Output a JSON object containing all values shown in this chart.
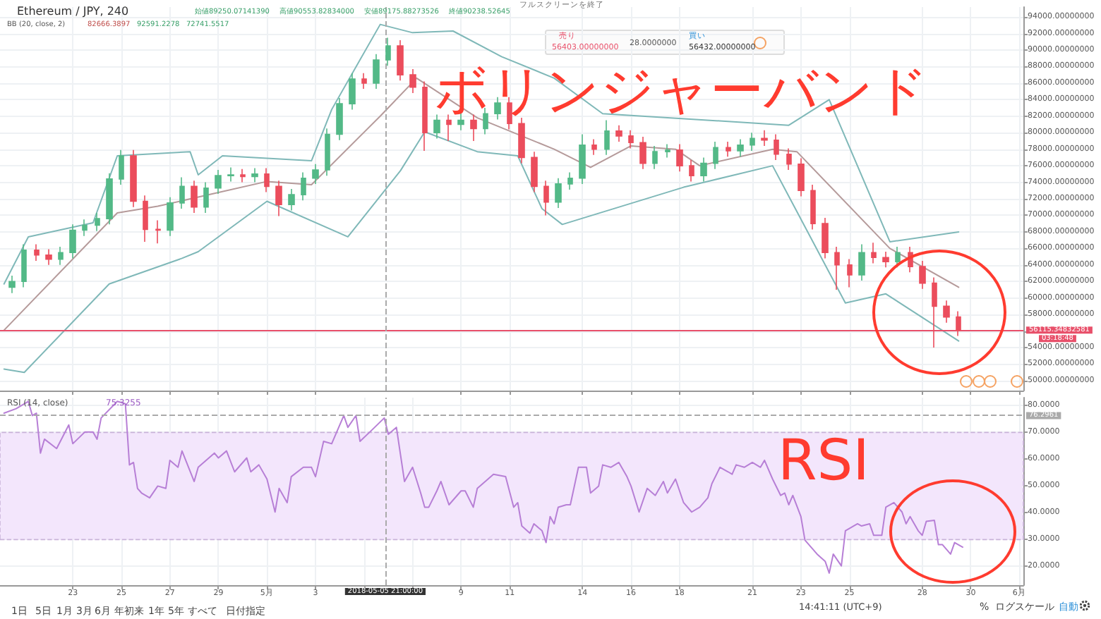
{
  "chart_data": [
    {
      "type": "candlestick",
      "title": "ボリンジャーバンド",
      "tick_labels": "y",
      "grid": true,
      "xlim": [
        "2018-04-20T00:00",
        "2018-06-01T04:00"
      ],
      "xticks": [
        {
          "value": "2018-04-23",
          "label": null
        },
        {
          "value": "2018-04-25",
          "label": null
        },
        {
          "value": "2018-04-27",
          "label": null
        },
        {
          "value": "2018-04-29",
          "label": null
        },
        {
          "value": "2018-05-01",
          "label": null
        },
        {
          "value": "2018-05-03",
          "label": null
        },
        {
          "value": "2018-05-09",
          "label": null
        },
        {
          "value": "2018-05-11",
          "label": null
        },
        {
          "value": "2018-05-14",
          "label": null
        },
        {
          "value": "2018-05-16",
          "label": null
        },
        {
          "value": "2018-05-18",
          "label": null
        },
        {
          "value": "2018-05-21",
          "label": null
        },
        {
          "value": "2018-05-23",
          "label": null
        },
        {
          "value": "2018-05-25",
          "label": null
        },
        {
          "value": "2018-05-28",
          "label": null
        },
        {
          "value": "2018-05-30",
          "label": null
        },
        {
          "value": "2018-06-01",
          "label": null
        }
      ],
      "ylim": [
        48800,
        95200
      ],
      "yticks": [
        {
          "value": 50000,
          "label": "50000.00000000"
        },
        {
          "value": 52000,
          "label": "52000.00000000"
        },
        {
          "value": 54000,
          "label": "54000.00000000"
        },
        {
          "value": 56000,
          "label": null
        },
        {
          "value": 58000,
          "label": "58000.00000000"
        },
        {
          "value": 60000,
          "label": "60000.00000000"
        },
        {
          "value": 62000,
          "label": "62000.00000000"
        },
        {
          "value": 64000,
          "label": "64000.00000000"
        },
        {
          "value": 66000,
          "label": "66000.00000000"
        },
        {
          "value": 68000,
          "label": "68000.00000000"
        },
        {
          "value": 70000,
          "label": "70000.00000000"
        },
        {
          "value": 72000,
          "label": "72000.00000000"
        },
        {
          "value": 74000,
          "label": "74000.00000000"
        },
        {
          "value": 76000,
          "label": "76000.00000000"
        },
        {
          "value": 78000,
          "label": "78000.00000000"
        },
        {
          "value": 80000,
          "label": "80000.00000000"
        },
        {
          "value": 82000,
          "label": "82000.00000000"
        },
        {
          "value": 84000,
          "label": "84000.00000000"
        },
        {
          "value": 86000,
          "label": "86000.00000000"
        },
        {
          "value": 88000,
          "label": "88000.00000000"
        },
        {
          "value": 90000,
          "label": "90000.00000000"
        },
        {
          "value": 92000,
          "label": "92000.00000000"
        },
        {
          "value": 94000,
          "label": "94000.00000000"
        }
      ],
      "series": [
        {
          "type": "line",
          "color": "#7fb8b8",
          "x": [
            "2018-04-20T04:00",
            "2018-04-21T04:00",
            "2018-04-23T20:00",
            "2018-04-24T20:00",
            "2018-04-27T20:00",
            "2018-04-28T04:00",
            "2018-04-29T04:00",
            "2018-05-02T20:00",
            "2018-05-03T16:00",
            "2018-05-05T16:00",
            "2018-05-07T00:00",
            "2018-05-08T16:00",
            "2018-05-10T16:00",
            "2018-05-12T20:00",
            "2018-05-14T20:00",
            "2018-05-22T12:00",
            "2018-05-24T04:00",
            "2018-05-26T16:00",
            "2018-05-29T12:00"
          ],
          "values": [
            61700,
            67400,
            69100,
            77200,
            77700,
            74900,
            77200,
            76600,
            82800,
            93100,
            92100,
            92300,
            89200,
            86600,
            82300,
            80900,
            84000,
            66800,
            68000
          ]
        },
        {
          "type": "line",
          "color": "#b59a9a",
          "x": [
            "2018-04-20T04:00",
            "2018-04-24T20:00",
            "2018-04-26T12:00",
            "2018-05-01T00:00",
            "2018-05-02T20:00",
            "2018-05-05T16:00",
            "2018-05-07T04:00",
            "2018-05-09T16:00",
            "2018-05-12T20:00",
            "2018-05-14T08:00",
            "2018-05-16T00:00",
            "2018-05-17T20:00",
            "2018-05-18T20:00",
            "2018-05-21T20:00",
            "2018-05-22T20:00",
            "2018-05-26T16:00",
            "2018-05-29T12:00"
          ],
          "values": [
            56100,
            70300,
            71100,
            74100,
            73700,
            82000,
            86600,
            81800,
            78000,
            75800,
            78400,
            78000,
            76000,
            78000,
            77700,
            66000,
            61300
          ]
        },
        {
          "type": "line",
          "color": "#7fb8b8",
          "x": [
            "2018-04-20T04:00",
            "2018-04-21T00:00",
            "2018-04-24T12:00",
            "2018-04-27T12:00",
            "2018-04-28T04:00",
            "2018-05-01T00:00",
            "2018-05-04T08:00",
            "2018-05-06T12:00",
            "2018-05-07T12:00",
            "2018-05-09T16:00",
            "2018-05-11T08:00",
            "2018-05-12T08:00",
            "2018-05-13T04:00",
            "2018-05-18T04:00",
            "2018-05-21T20:00",
            "2018-05-24T20:00",
            "2018-05-26T12:00",
            "2018-05-29T12:00"
          ],
          "values": [
            51400,
            51000,
            61700,
            64800,
            65600,
            71700,
            67400,
            75400,
            80100,
            77700,
            77200,
            70800,
            68900,
            73400,
            76000,
            59400,
            60500,
            54800
          ]
        },
        {
          "type": "candlestick",
          "colors": [
            "#53b987",
            "#53b987",
            "#eb4d5c",
            "#eb4d5c",
            "#53b987",
            "#53b987",
            "#53b987",
            "#53b987",
            "#53b987",
            "#53b987",
            "#eb4d5c",
            "#eb4d5c",
            "#eb4d5c",
            "#53b987",
            "#53b987",
            "#eb4d5c",
            "#53b987",
            "#53b987",
            "#53b987",
            "#eb4d5c",
            "#53b987",
            "#eb4d5c",
            "#eb4d5c",
            "#53b987",
            "#53b987",
            "#53b987",
            "#53b987",
            "#53b987",
            "#53b987",
            "#eb4d5c",
            "#53b987",
            "#53b987",
            "#eb4d5c",
            "#eb4d5c",
            "#eb4d5c",
            "#53b987",
            "#eb4d5c",
            "#53b987",
            "#eb4d5c",
            "#53b987",
            "#53b987",
            "#eb4d5c",
            "#eb4d5c",
            "#eb4d5c",
            "#eb4d5c",
            "#53b987",
            "#53b987",
            "#53b987",
            "#eb4d5c",
            "#53b987",
            "#eb4d5c",
            "#eb4d5c",
            "#eb4d5c",
            "#53b987",
            "#53b987",
            "#eb4d5c",
            "#eb4d5c",
            "#53b987",
            "#53b987",
            "#eb4d5c",
            "#53b987",
            "#53b987",
            "#eb4d5c",
            "#eb4d5c",
            "#eb4d5c",
            "#eb4d5c",
            "#eb4d5c",
            "#eb4d5c",
            "#eb4d5c",
            "#eb4d5c",
            "#53b987",
            "#eb4d5c",
            "#eb4d5c",
            "#53b987",
            "#eb4d5c",
            "#eb4d5c",
            "#eb4d5c",
            "#eb4d5c",
            "#eb4d5c"
          ],
          "x": [
            "2018-04-20T12:00",
            "2018-04-21T00:00",
            "2018-04-21T12:00",
            "2018-04-22T00:00",
            "2018-04-22T12:00",
            "2018-04-23T00:00",
            "2018-04-23T12:00",
            "2018-04-24T00:00",
            "2018-04-24T12:00",
            "2018-04-25T00:00",
            "2018-04-25T12:00",
            "2018-04-26T00:00",
            "2018-04-26T12:00",
            "2018-04-27T00:00",
            "2018-04-27T12:00",
            "2018-04-28T00:00",
            "2018-04-28T12:00",
            "2018-04-29T00:00",
            "2018-04-29T12:00",
            "2018-04-30T00:00",
            "2018-04-30T12:00",
            "2018-05-01T00:00",
            "2018-05-01T12:00",
            "2018-05-02T00:00",
            "2018-05-02T12:00",
            "2018-05-03T00:00",
            "2018-05-03T12:00",
            "2018-05-04T00:00",
            "2018-05-04T12:00",
            "2018-05-05T00:00",
            "2018-05-05T12:00",
            "2018-05-06T00:00",
            "2018-05-06T12:00",
            "2018-05-07T00:00",
            "2018-05-07T12:00",
            "2018-05-08T00:00",
            "2018-05-08T12:00",
            "2018-05-09T00:00",
            "2018-05-09T12:00",
            "2018-05-10T00:00",
            "2018-05-10T12:00",
            "2018-05-11T00:00",
            "2018-05-11T12:00",
            "2018-05-12T00:00",
            "2018-05-12T12:00",
            "2018-05-13T00:00",
            "2018-05-13T12:00",
            "2018-05-14T00:00",
            "2018-05-14T12:00",
            "2018-05-15T00:00",
            "2018-05-15T12:00",
            "2018-05-16T00:00",
            "2018-05-16T12:00",
            "2018-05-17T00:00",
            "2018-05-17T12:00",
            "2018-05-18T00:00",
            "2018-05-18T12:00",
            "2018-05-19T00:00",
            "2018-05-19T12:00",
            "2018-05-20T00:00",
            "2018-05-20T12:00",
            "2018-05-21T00:00",
            "2018-05-21T12:00",
            "2018-05-22T00:00",
            "2018-05-22T12:00",
            "2018-05-23T00:00",
            "2018-05-23T12:00",
            "2018-05-24T00:00",
            "2018-05-24T12:00",
            "2018-05-25T00:00",
            "2018-05-25T12:00",
            "2018-05-26T00:00",
            "2018-05-26T12:00",
            "2018-05-27T00:00",
            "2018-05-27T12:00",
            "2018-05-28T00:00",
            "2018-05-28T12:00",
            "2018-05-29T00:00",
            "2018-05-29T12:00"
          ],
          "ohlc": [
            [
              61300,
              62700,
              60600,
              62000
            ],
            [
              62000,
              66500,
              61300,
              65800
            ],
            [
              65800,
              66500,
              64500,
              65200
            ],
            [
              65200,
              65900,
              64000,
              64700
            ],
            [
              64700,
              66200,
              64000,
              65500
            ],
            [
              65500,
              68900,
              64800,
              68200
            ],
            [
              68200,
              69500,
              67500,
              68800
            ],
            [
              68800,
              70300,
              68100,
              69600
            ],
            [
              69600,
              75100,
              68900,
              74400
            ],
            [
              74400,
              77900,
              73700,
              77200
            ],
            [
              77200,
              77900,
              71000,
              71700
            ],
            [
              71700,
              72400,
              66800,
              68300
            ],
            [
              68300,
              69400,
              66600,
              68200
            ],
            [
              68200,
              72200,
              67500,
              71500
            ],
            [
              71500,
              74600,
              70800,
              73500
            ],
            [
              73500,
              74200,
              70300,
              71000
            ],
            [
              71000,
              74000,
              70300,
              73300
            ],
            [
              73300,
              75500,
              72600,
              74800
            ],
            [
              74800,
              75800,
              74100,
              74900
            ],
            [
              74900,
              75600,
              74000,
              74700
            ],
            [
              74700,
              75700,
              74000,
              75000
            ],
            [
              75000,
              75700,
              72800,
              73500
            ],
            [
              73500,
              74200,
              69900,
              71300
            ],
            [
              71300,
              73200,
              70600,
              72500
            ],
            [
              72500,
              75200,
              71800,
              74500
            ],
            [
              74500,
              76200,
              73800,
              75500
            ],
            [
              75500,
              80500,
              74800,
              79800
            ],
            [
              79800,
              84200,
              79100,
              83500
            ],
            [
              83500,
              87200,
              82800,
              86500
            ],
            [
              86500,
              87200,
              85300,
              86000
            ],
            [
              86000,
              89500,
              85300,
              88800
            ],
            [
              88800,
              91500,
              88100,
              90500
            ],
            [
              90500,
              91200,
              86300,
              87000
            ],
            [
              87000,
              87700,
              84800,
              85500
            ],
            [
              85500,
              86200,
              77800,
              80000
            ],
            [
              80000,
              82200,
              79300,
              81500
            ],
            [
              81500,
              82200,
              79000,
              81000
            ],
            [
              81000,
              82800,
              80300,
              81500
            ],
            [
              81500,
              82200,
              79000,
              80500
            ],
            [
              80500,
              83000,
              79800,
              82300
            ],
            [
              82300,
              84300,
              81600,
              83600
            ],
            [
              83600,
              84300,
              80400,
              81100
            ],
            [
              81100,
              81800,
              76300,
              77000
            ],
            [
              77000,
              77700,
              72800,
              73500
            ],
            [
              73500,
              74200,
              70000,
              71600
            ],
            [
              71600,
              74500,
              70900,
              73800
            ],
            [
              73800,
              75200,
              73100,
              74500
            ],
            [
              74500,
              79800,
              73800,
              78500
            ],
            [
              78500,
              79200,
              77300,
              78000
            ],
            [
              78000,
              81500,
              77300,
              80200
            ],
            [
              80200,
              80900,
              78900,
              79600
            ],
            [
              79600,
              80300,
              78100,
              78800
            ],
            [
              78800,
              79500,
              75600,
              76300
            ],
            [
              76300,
              78400,
              75600,
              77700
            ],
            [
              77700,
              78600,
              77000,
              77900
            ],
            [
              77900,
              78600,
              75300,
              76000
            ],
            [
              76000,
              76700,
              74100,
              74800
            ],
            [
              74800,
              77000,
              74100,
              76300
            ],
            [
              76300,
              78900,
              75600,
              78200
            ],
            [
              78200,
              78900,
              77100,
              77800
            ],
            [
              77800,
              79200,
              77100,
              78500
            ],
            [
              78500,
              80000,
              77800,
              79300
            ],
            [
              79300,
              80300,
              78400,
              79100
            ],
            [
              79100,
              79800,
              76700,
              77400
            ],
            [
              77400,
              78100,
              75500,
              76200
            ],
            [
              76200,
              76900,
              72300,
              73000
            ],
            [
              73000,
              73700,
              68300,
              69000
            ],
            [
              69000,
              69700,
              64800,
              65500
            ],
            [
              65500,
              66200,
              61000,
              64000
            ],
            [
              64000,
              64700,
              61300,
              62800
            ],
            [
              62800,
              66500,
              62100,
              65500
            ],
            [
              65500,
              66700,
              64200,
              64900
            ],
            [
              64900,
              65600,
              63700,
              64400
            ],
            [
              64400,
              66200,
              63700,
              65500
            ],
            [
              65500,
              66200,
              63100,
              63800
            ],
            [
              63800,
              64500,
              61100,
              61800
            ],
            [
              61800,
              62500,
              54000,
              59000
            ],
            [
              59000,
              59700,
              57000,
              57700
            ],
            [
              57700,
              58400,
              55400,
              56100
            ]
          ]
        }
      ],
      "ref_lines": [
        {
          "axis": "y",
          "value": 56115.34832581,
          "label": "56115.34832581",
          "color": "#e8506a"
        },
        {
          "axis": "x",
          "value": "2018-05-05T21:00",
          "line_style": "dashed",
          "color": "#aaaaaa"
        }
      ],
      "annotations": [
        "Ethereum / JPY, 240",
        "始値89250.07141390",
        "高値90553.82834000",
        "安値89175.88273526",
        "終値90238.52645",
        "BB (20, close, 2)",
        "82666.3897",
        "92591.2278",
        "72741.5517",
        "売り",
        "56403.00000000",
        "28.0000000",
        "買い",
        "56432.00000000",
        "03:18:48",
        "フルスクリーンを終了"
      ]
    },
    {
      "type": "line",
      "title": "RSI",
      "grid": true,
      "xlim": [
        "2018-04-20T00:00",
        "2018-06-01T04:00"
      ],
      "xticks": [
        {
          "value": "2018-04-23",
          "label": "23"
        },
        {
          "value": "2018-04-25",
          "label": "25"
        },
        {
          "value": "2018-04-27",
          "label": "27"
        },
        {
          "value": "2018-04-29",
          "label": "29"
        },
        {
          "value": "2018-05-01",
          "label": "5月"
        },
        {
          "value": "2018-05-03",
          "label": "3"
        },
        {
          "value": "2018-05-05",
          "label": null
        },
        {
          "value": "2018-05-07",
          "label": null
        },
        {
          "value": "2018-05-09",
          "label": "9"
        },
        {
          "value": "2018-05-11",
          "label": "11"
        },
        {
          "value": "2018-05-14",
          "label": "14"
        },
        {
          "value": "2018-05-16",
          "label": "16"
        },
        {
          "value": "2018-05-18",
          "label": "18"
        },
        {
          "value": "2018-05-21",
          "label": "21"
        },
        {
          "value": "2018-05-23",
          "label": "23"
        },
        {
          "value": "2018-05-25",
          "label": "25"
        },
        {
          "value": "2018-05-28",
          "label": "28"
        },
        {
          "value": "2018-05-30",
          "label": "30"
        },
        {
          "value": "2018-06-01",
          "label": "6月"
        }
      ],
      "ylim": [
        13,
        83
      ],
      "yticks": [
        {
          "value": 20,
          "label": "20.0000"
        },
        {
          "value": 30,
          "label": "30.0000"
        },
        {
          "value": 40,
          "label": "40.0000"
        },
        {
          "value": 50,
          "label": "50.0000"
        },
        {
          "value": 60,
          "label": "60.0000"
        },
        {
          "value": 70,
          "label": "70.0000"
        },
        {
          "value": 80,
          "label": "80.0000"
        }
      ],
      "series": [
        {
          "color": "#b77fd6",
          "x": [
            "2018-04-20T04:00",
            "2018-04-20T16:00",
            "2018-04-21T04:00",
            "2018-04-21T08:00",
            "2018-04-21T12:00",
            "2018-04-21T16:00",
            "2018-04-21T20:00",
            "2018-04-22T08:00",
            "2018-04-22T20:00",
            "2018-04-23T00:00",
            "2018-04-23T12:00",
            "2018-04-23T20:00",
            "2018-04-24T00:00",
            "2018-04-24T04:00",
            "2018-04-24T20:00",
            "2018-04-25T04:00",
            "2018-04-25T08:00",
            "2018-04-25T12:00",
            "2018-04-25T16:00",
            "2018-04-25T20:00",
            "2018-04-26T04:00",
            "2018-04-26T12:00",
            "2018-04-26T20:00",
            "2018-04-27T00:00",
            "2018-04-27T08:00",
            "2018-04-27T12:00",
            "2018-04-28T00:00",
            "2018-04-28T04:00",
            "2018-04-28T20:00",
            "2018-04-29T00:00",
            "2018-04-29T08:00",
            "2018-04-29T16:00",
            "2018-04-30T04:00",
            "2018-04-30T08:00",
            "2018-04-30T16:00",
            "2018-05-01T00:00",
            "2018-05-01T08:00",
            "2018-05-01T12:00",
            "2018-05-01T20:00",
            "2018-05-02T00:00",
            "2018-05-02T12:00",
            "2018-05-02T20:00",
            "2018-05-03T00:00",
            "2018-05-03T08:00",
            "2018-05-03T16:00",
            "2018-05-04T04:00",
            "2018-05-04T08:00",
            "2018-05-04T16:00",
            "2018-05-04T20:00",
            "2018-05-05T08:00",
            "2018-05-05T20:00",
            "2018-05-06T00:00",
            "2018-05-06T08:00",
            "2018-05-06T16:00",
            "2018-05-07T00:00",
            "2018-05-07T08:00",
            "2018-05-07T12:00",
            "2018-05-07T16:00",
            "2018-05-08T00:00",
            "2018-05-08T04:00",
            "2018-05-08T12:00",
            "2018-05-09T00:00",
            "2018-05-09T04:00",
            "2018-05-09T12:00",
            "2018-05-09T16:00",
            "2018-05-10T08:00",
            "2018-05-10T20:00",
            "2018-05-11T04:00",
            "2018-05-11T08:00",
            "2018-05-11T12:00",
            "2018-05-11T20:00",
            "2018-05-12T00:00",
            "2018-05-12T08:00",
            "2018-05-12T12:00",
            "2018-05-12T16:00",
            "2018-05-12T20:00",
            "2018-05-13T00:00",
            "2018-05-13T08:00",
            "2018-05-13T12:00",
            "2018-05-13T20:00",
            "2018-05-14T04:00",
            "2018-05-14T08:00",
            "2018-05-14T16:00",
            "2018-05-14T20:00",
            "2018-05-15T04:00",
            "2018-05-15T12:00",
            "2018-05-15T20:00",
            "2018-05-16T00:00",
            "2018-05-16T08:00",
            "2018-05-16T16:00",
            "2018-05-17T00:00",
            "2018-05-17T08:00",
            "2018-05-17T12:00",
            "2018-05-17T20:00",
            "2018-05-18T04:00",
            "2018-05-18T12:00",
            "2018-05-18T20:00",
            "2018-05-19T04:00",
            "2018-05-19T08:00",
            "2018-05-19T16:00",
            "2018-05-20T00:00",
            "2018-05-20T04:00",
            "2018-05-20T08:00",
            "2018-05-20T16:00",
            "2018-05-21T00:00",
            "2018-05-21T08:00",
            "2018-05-21T12:00",
            "2018-05-21T20:00",
            "2018-05-22T04:00",
            "2018-05-22T08:00",
            "2018-05-22T12:00",
            "2018-05-22T16:00",
            "2018-05-23T00:00",
            "2018-05-23T04:00",
            "2018-05-23T16:00",
            "2018-05-24T00:00",
            "2018-05-24T04:00",
            "2018-05-24T08:00",
            "2018-05-24T16:00",
            "2018-05-24T20:00",
            "2018-05-25T08:00",
            "2018-05-25T12:00",
            "2018-05-25T20:00",
            "2018-05-26T00:00",
            "2018-05-26T08:00",
            "2018-05-26T12:00",
            "2018-05-26T20:00",
            "2018-05-27T04:00",
            "2018-05-27T08:00",
            "2018-05-27T12:00",
            "2018-05-27T20:00",
            "2018-05-28T00:00",
            "2018-05-28T04:00",
            "2018-05-28T12:00",
            "2018-05-28T16:00",
            "2018-05-28T20:00",
            "2018-05-29T04:00",
            "2018-05-29T08:00",
            "2018-05-29T16:00"
          ],
          "values": [
            77.2,
            78.9,
            81.6,
            76.3,
            77.2,
            62.3,
            67.5,
            64.0,
            72.8,
            65.8,
            70.2,
            70.2,
            67.5,
            75.4,
            81.6,
            80.7,
            57.9,
            58.8,
            49.1,
            47.4,
            45.6,
            50.0,
            49.1,
            59.6,
            57.0,
            63.1,
            51.7,
            57.0,
            62.3,
            60.5,
            63.1,
            55.3,
            60.5,
            55.3,
            57.9,
            52.6,
            40.3,
            49.1,
            43.8,
            53.5,
            57.0,
            57.0,
            53.5,
            66.7,
            65.8,
            76.3,
            71.9,
            76.3,
            66.7,
            71.0,
            75.4,
            69.3,
            71.9,
            51.7,
            57.0,
            47.4,
            42.1,
            42.1,
            48.2,
            51.7,
            43.0,
            48.2,
            48.2,
            42.1,
            49.1,
            54.4,
            53.5,
            42.1,
            43.8,
            35.1,
            32.4,
            35.9,
            33.3,
            28.9,
            38.6,
            35.9,
            42.1,
            43.0,
            43.0,
            57.0,
            57.0,
            47.4,
            50.0,
            57.9,
            57.0,
            58.8,
            53.5,
            50.0,
            40.3,
            49.1,
            46.5,
            51.7,
            47.4,
            52.6,
            43.8,
            40.3,
            42.1,
            45.6,
            50.9,
            57.0,
            55.3,
            54.4,
            57.9,
            57.0,
            58.8,
            57.0,
            59.6,
            52.6,
            46.5,
            47.4,
            43.0,
            46.5,
            38.6,
            29.8,
            24.6,
            21.9,
            17.5,
            24.6,
            20.2,
            33.3,
            35.9,
            35.1,
            35.9,
            31.6,
            31.6,
            42.1,
            43.8,
            40.3,
            35.9,
            38.6,
            33.3,
            31.6,
            36.8,
            37.2,
            28.1,
            28.1,
            24.6,
            28.9,
            27.2
          ]
        }
      ],
      "bands": [
        {
          "axis": "y",
          "from": 30,
          "to": 70,
          "color": "#f3e6fc"
        }
      ],
      "ref_lines": [
        {
          "axis": "y",
          "value": 76.2961,
          "label": "76.2961",
          "line_style": "dashed",
          "color": "#aaaaaa"
        },
        {
          "axis": "x",
          "value": "2018-05-05T21:00",
          "label": "2018-05-05 21:00:00",
          "line_style": "dashed",
          "color": "#aaaaaa"
        }
      ],
      "annotations": [
        "RSI (14, close)",
        "75.3255",
        "1日",
        "5日",
        "1月",
        "3月",
        "6月",
        "年初来",
        "1年",
        "5年",
        "すべて",
        "日付指定",
        "14:41:11 (UTC+9)",
        "%",
        "ログスケール",
        "自動"
      ]
    }
  ]
}
